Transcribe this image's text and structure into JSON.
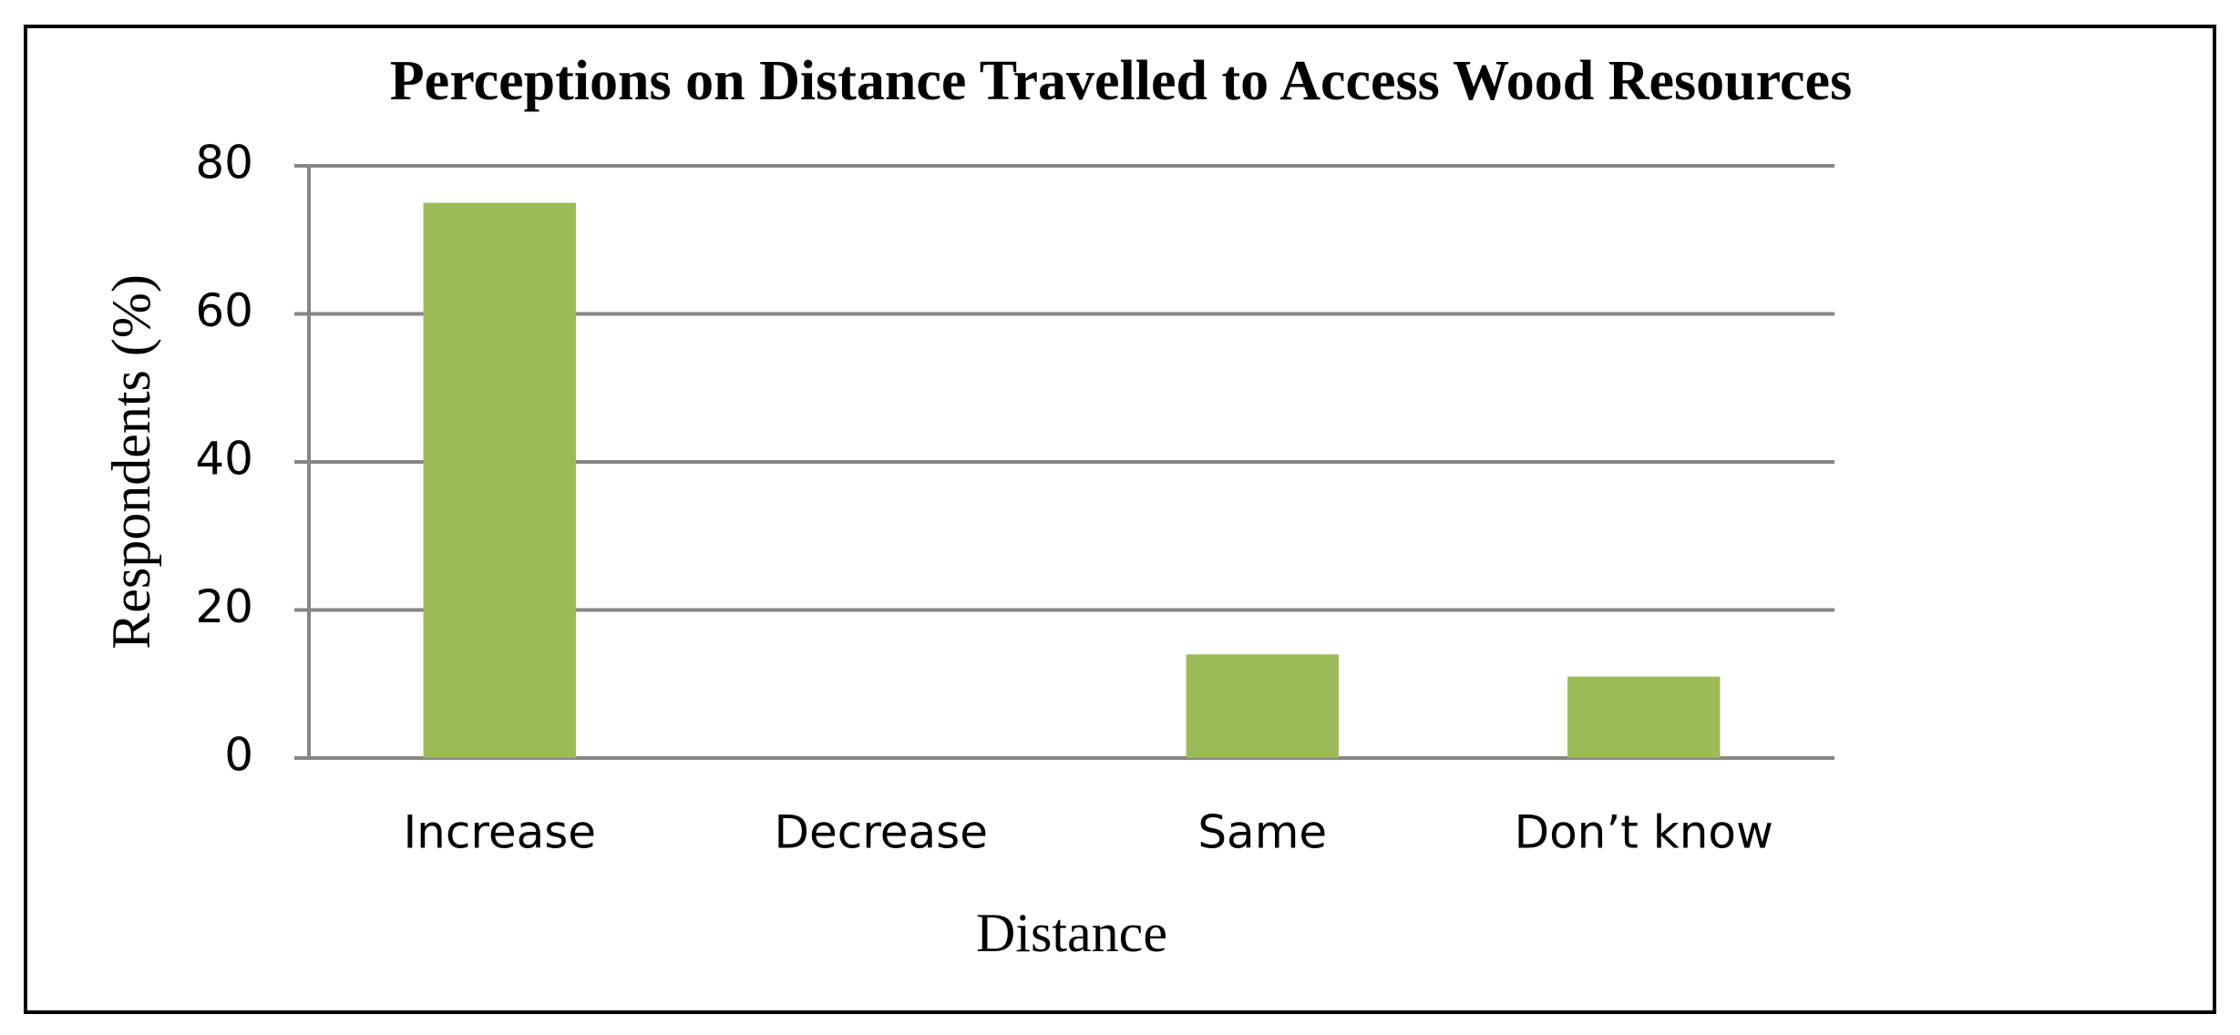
{
  "chart_data": {
    "type": "bar",
    "title": "Perceptions on Distance Travelled to Access Wood Resources",
    "x_label": "Distance",
    "y_label": "Respondents (%)",
    "categories": [
      "Increase",
      "Decrease",
      "Same",
      "Don’t know"
    ],
    "values": [
      75,
      0,
      14,
      11
    ],
    "color": "#9bbb59",
    "ylim": [
      0,
      80
    ],
    "yticks": [
      0,
      20,
      40,
      60,
      80
    ],
    "grid": true
  }
}
